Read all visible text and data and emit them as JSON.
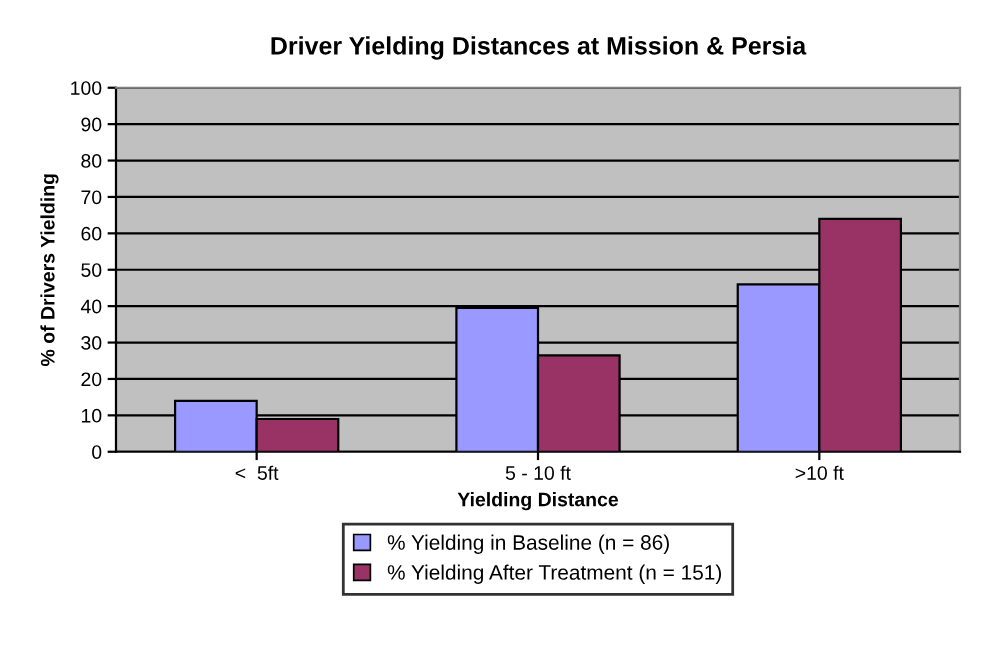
{
  "chart_data": {
    "type": "bar",
    "title": "Driver Yielding Distances at Mission & Persia",
    "xlabel": "Yielding Distance",
    "ylabel": "% of Drivers Yielding",
    "categories": [
      "<  5ft",
      "5 - 10 ft",
      ">10 ft"
    ],
    "series": [
      {
        "name": "% Yielding in Baseline (n = 86)",
        "color": "#9999ff",
        "values": [
          14,
          39.5,
          46
        ]
      },
      {
        "name": "% Yielding After Treatment (n = 151)",
        "color": "#993366",
        "values": [
          9,
          26.5,
          64
        ]
      }
    ],
    "ylim": [
      0,
      100
    ],
    "yticks": [
      0,
      10,
      20,
      30,
      40,
      50,
      60,
      70,
      80,
      90,
      100
    ],
    "grid": "y",
    "legend": "bottom"
  }
}
